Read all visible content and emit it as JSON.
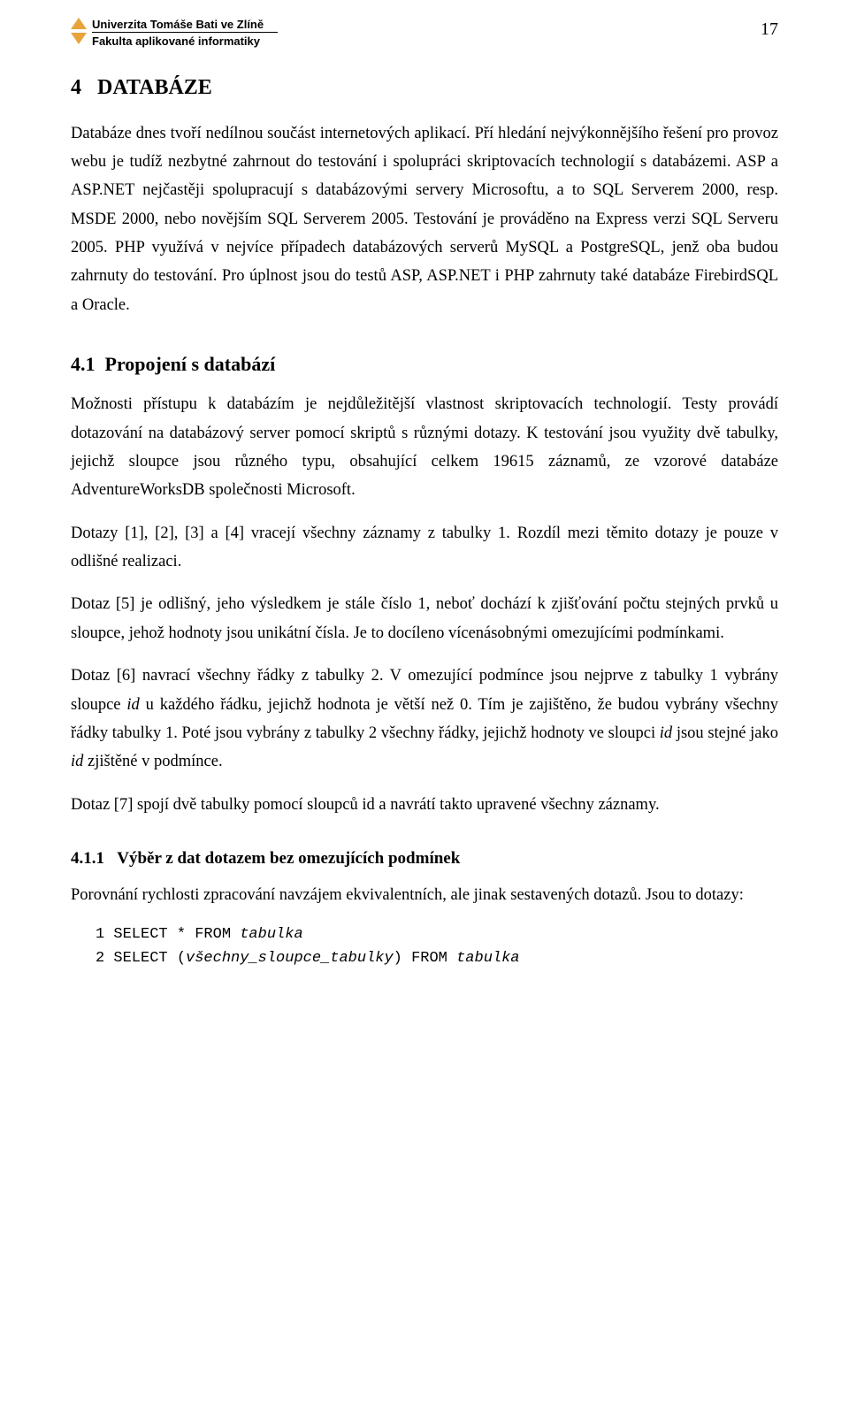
{
  "header": {
    "uni_line1": "Univerzita Tomáše Bati ve Zlíně",
    "uni_line2": "Fakulta aplikované informatiky",
    "page_number": "17"
  },
  "section": {
    "number": "4",
    "title": "DATABÁZE"
  },
  "para1": "Databáze dnes tvoří nedílnou součást internetových aplikací. Pří hledání nejvýkonnějšího řešení pro provoz webu je tudíž nezbytné zahrnout do testování i spolupráci skriptovacích technologií s databázemi. ASP a ASP.NET nejčastěji spolupracují s databázovými servery Microsoftu, a to SQL Serverem 2000, resp. MSDE 2000, nebo novějším SQL Serverem 2005. Testování je prováděno na Express verzi SQL Serveru 2005. PHP využívá v nejvíce případech databázových serverů MySQL a PostgreSQL, jenž oba budou zahrnuty do testování. Pro úplnost jsou do testů ASP, ASP.NET i PHP zahrnuty také databáze FirebirdSQL a Oracle.",
  "sub41": {
    "number": "4.1",
    "title": "Propojení s databází"
  },
  "para2": "Možnosti přístupu k databázím je nejdůležitější vlastnost skriptovacích technologií. Testy provádí dotazování na databázový server pomocí skriptů s různými dotazy. K testování jsou využity dvě tabulky, jejichž sloupce jsou různého typu, obsahující celkem 19615 záznamů, ze vzorové databáze AdventureWorksDB společnosti Microsoft.",
  "para3": "Dotazy [1], [2], [3] a [4] vracejí všechny záznamy z tabulky 1. Rozdíl mezi těmito dotazy je pouze v odlišné realizaci.",
  "para4": "Dotaz [5] je odlišný, jeho výsledkem je stále číslo 1, neboť dochází k zjišťování počtu stejných prvků u sloupce, jehož hodnoty jsou unikátní čísla. Je to docíleno vícenásobnými omezujícími podmínkami.",
  "para5_a": "Dotaz [6] navrací všechny řádky z tabulky 2. V omezující podmínce jsou nejprve z tabulky 1 vybrány sloupce ",
  "para5_id1": "id",
  "para5_b": " u každého řádku, jejichž hodnota je větší než 0. Tím je zajištěno, že budou vybrány všechny řádky tabulky 1. Poté jsou vybrány z tabulky 2 všechny řádky, jejichž hodnoty ve sloupci ",
  "para5_id2": "id",
  "para5_c": " jsou stejné jako ",
  "para5_id3": "id",
  "para5_d": " zjištěné v podmínce.",
  "para6": "Dotaz [7] spojí dvě tabulky pomocí sloupců id a navrátí takto upravené všechny záznamy.",
  "sub411": {
    "number": "4.1.1",
    "title": "Výběr z dat dotazem bez omezujících podmínek"
  },
  "para7": "Porovnání rychlosti zpracování navzájem ekvivalentních, ale jinak sestavených dotazů. Jsou to dotazy:",
  "code": {
    "l1_pre": "1 SELECT * FROM ",
    "l1_it": "tabulka",
    "l2_pre": "2 SELECT (",
    "l2_it1": "všechny_sloupce_tabulky",
    "l2_mid": ") FROM ",
    "l2_it2": "tabulka"
  },
  "colors": {
    "text": "#000000",
    "background": "#ffffff",
    "logo": "#e8a33d"
  },
  "fonts": {
    "body_family": "Times New Roman",
    "header_family": "Arial",
    "code_family": "Courier New",
    "body_size_pt": 14,
    "section_size_pt": 18,
    "sub_size_pt": 16,
    "subsub_size_pt": 14,
    "code_size_pt": 12
  }
}
